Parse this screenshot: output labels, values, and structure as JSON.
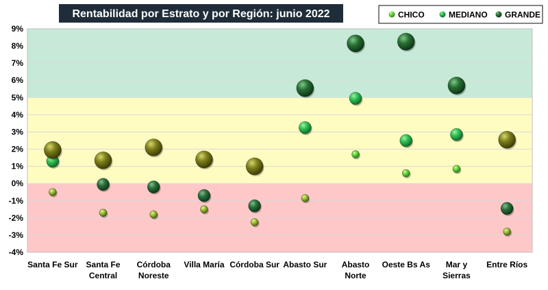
{
  "chart_data": {
    "type": "scatter",
    "title": "Rentabilidad por Estrato y por Región: junio 2022",
    "categories": [
      "Santa Fe Sur",
      "Santa Fe Central",
      "Córdoba Noreste",
      "Villa María",
      "Córdoba Sur",
      "Abasto Sur",
      "Abasto Norte",
      "Oeste Bs As",
      "Mar y Sierras",
      "Entre Ríos"
    ],
    "category_lines": [
      [
        "Santa Fe Sur"
      ],
      [
        "Santa Fe",
        "Central"
      ],
      [
        "Córdoba",
        "Noreste"
      ],
      [
        "Villa María"
      ],
      [
        "Córdoba Sur"
      ],
      [
        "Abasto Sur"
      ],
      [
        "Abasto",
        "Norte"
      ],
      [
        "Oeste Bs As"
      ],
      [
        "Mar y",
        "Sierras"
      ],
      [
        "Entre Ríos"
      ]
    ],
    "ylim": [
      -4,
      9
    ],
    "yticks": [
      "-4%",
      "-3%",
      "-2%",
      "-1%",
      "0%",
      "1%",
      "2%",
      "3%",
      "4%",
      "5%",
      "6%",
      "7%",
      "8%",
      "9%"
    ],
    "bands": [
      {
        "from": 5,
        "to": 9,
        "color": "#c6ead7"
      },
      {
        "from": 0,
        "to": 5,
        "color": "#fffcc2"
      },
      {
        "from": -4,
        "to": 0,
        "color": "#ffc8c8"
      }
    ],
    "grid": true,
    "legend_position": "top-right",
    "series": [
      {
        "name": "CHICO",
        "color": "#5fd43c",
        "values": [
          -0.5,
          -1.7,
          -1.8,
          -1.5,
          -2.25,
          -0.85,
          1.7,
          0.6,
          0.85,
          -2.8
        ]
      },
      {
        "name": "MEDIANO",
        "color": "#1f9e45",
        "values": [
          1.3,
          -0.05,
          -0.2,
          -0.7,
          -1.3,
          3.25,
          4.95,
          2.5,
          2.85,
          -1.45
        ]
      },
      {
        "name": "GRANDE",
        "color": "#1f5e29",
        "values": [
          1.95,
          1.35,
          2.1,
          1.4,
          1.0,
          5.55,
          8.15,
          8.25,
          5.7,
          2.55
        ]
      }
    ]
  }
}
